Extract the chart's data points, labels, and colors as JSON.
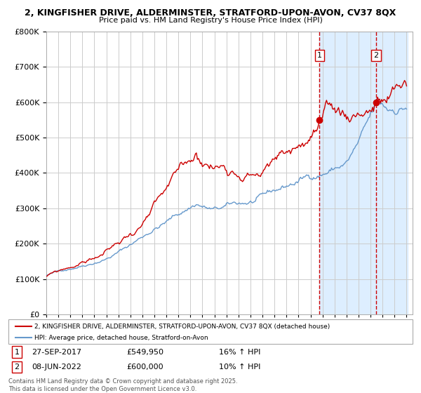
{
  "title_line1": "2, KINGFISHER DRIVE, ALDERMINSTER, STRATFORD-UPON-AVON, CV37 8QX",
  "title_line2": "Price paid vs. HM Land Registry's House Price Index (HPI)",
  "legend_red": "2, KINGFISHER DRIVE, ALDERMINSTER, STRATFORD-UPON-AVON, CV37 8QX (detached house)",
  "legend_blue": "HPI: Average price, detached house, Stratford-on-Avon",
  "footer": "Contains HM Land Registry data © Crown copyright and database right 2025.\nThis data is licensed under the Open Government Licence v3.0.",
  "sale1_label": "1",
  "sale1_date": "27-SEP-2017",
  "sale1_price": "£549,950",
  "sale1_hpi": "16% ↑ HPI",
  "sale2_label": "2",
  "sale2_date": "08-JUN-2022",
  "sale2_price": "£600,000",
  "sale2_hpi": "10% ↑ HPI",
  "sale1_year": 2017.75,
  "sale2_year": 2022.44,
  "sale1_value": 549950,
  "sale2_value": 600000,
  "ymax": 800000,
  "yticks": [
    0,
    100000,
    200000,
    300000,
    400000,
    500000,
    600000,
    700000,
    800000
  ],
  "ytick_labels": [
    "£0",
    "£100K",
    "£200K",
    "£300K",
    "£400K",
    "£500K",
    "£600K",
    "£700K",
    "£800K"
  ],
  "red_color": "#cc0000",
  "blue_color": "#6699cc",
  "bg_color": "#ffffff",
  "plot_bg": "#ffffff",
  "highlight_bg": "#ddeeff",
  "grid_color": "#cccccc",
  "vline_color": "#cc0000"
}
